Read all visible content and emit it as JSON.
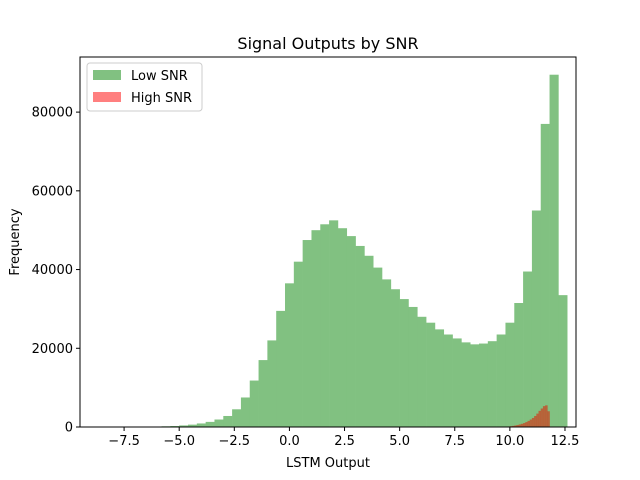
{
  "chart_data": {
    "type": "bar",
    "title": "Signal Outputs by SNR",
    "xlabel": "LSTM Output",
    "ylabel": "Frequency",
    "xlim": [
      -9.5,
      13.0
    ],
    "ylim": [
      0,
      94000
    ],
    "xticks": [
      -7.5,
      -5.0,
      -2.5,
      0.0,
      2.5,
      5.0,
      7.5,
      10.0,
      12.5
    ],
    "xtick_labels": [
      "−7.5",
      "−5.0",
      "−2.5",
      "0.0",
      "2.5",
      "5.0",
      "7.5",
      "10.0",
      "12.5"
    ],
    "yticks": [
      0,
      20000,
      40000,
      60000,
      80000
    ],
    "ytick_labels": [
      "0",
      "20000",
      "40000",
      "60000",
      "80000"
    ],
    "legend_position": "top-left",
    "series": [
      {
        "name": "Low SNR",
        "color": "#81c181",
        "bin_start": -7.0,
        "bin_width": 0.4,
        "values": [
          50,
          80,
          120,
          180,
          250,
          400,
          600,
          900,
          1300,
          1900,
          2800,
          4500,
          7500,
          11800,
          17000,
          22000,
          29500,
          36500,
          42000,
          47500,
          50000,
          51500,
          52500,
          50500,
          48500,
          46000,
          43500,
          40500,
          37500,
          35000,
          32500,
          30500,
          28000,
          26500,
          24800,
          23500,
          22500,
          21500,
          21000,
          21200,
          21800,
          23500,
          26500,
          31500,
          39500,
          55000,
          77000,
          89500,
          33500
        ]
      },
      {
        "name": "High SNR",
        "color": "#ff7f7f",
        "bin_start": 9.6,
        "bin_width": 0.1,
        "values": [
          20,
          50,
          90,
          140,
          200,
          280,
          380,
          500,
          650,
          800,
          1000,
          1250,
          1550,
          1900,
          2300,
          2800,
          3400,
          4100,
          4700,
          5300,
          5500,
          4000
        ]
      }
    ]
  }
}
